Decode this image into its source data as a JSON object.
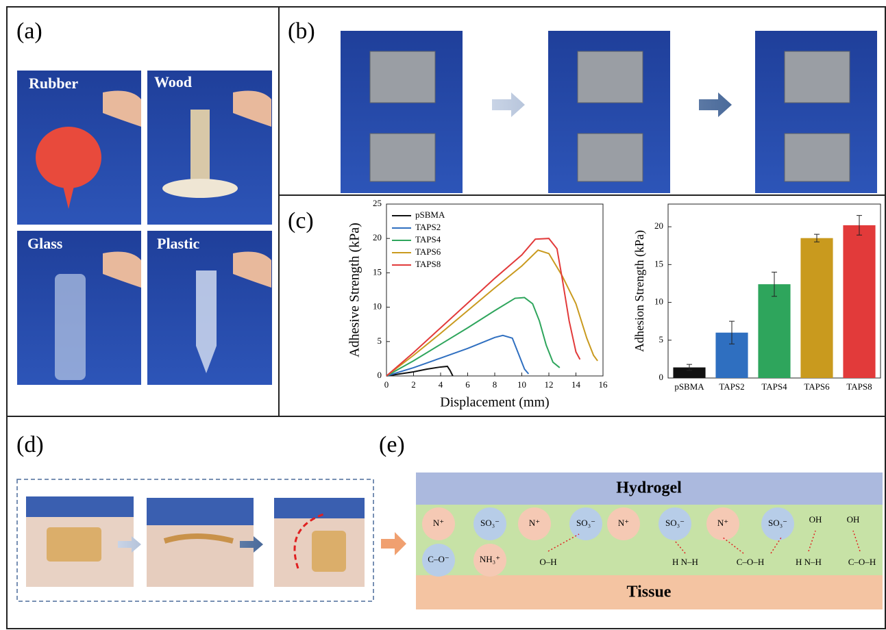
{
  "panels": {
    "a": "(a)",
    "b": "(b)",
    "c": "(c)",
    "d": "(d)",
    "e": "(e)"
  },
  "photo_labels": [
    "Rubber",
    "Wood",
    "Glass",
    "Plastic"
  ],
  "chart_data": [
    {
      "type": "line",
      "xlabel": "Displacement (mm)",
      "ylabel": "Adhesive Strength (kPa)",
      "xlim": [
        0,
        16
      ],
      "xticks": [
        0,
        2,
        4,
        6,
        8,
        10,
        12,
        14,
        16
      ],
      "ylim": [
        0,
        25
      ],
      "yticks": [
        0,
        5,
        10,
        15,
        20,
        25
      ],
      "legend": "upper left",
      "series": [
        {
          "name": "pSBMA",
          "color": "#111111",
          "x": [
            0,
            1,
            2,
            3,
            4,
            4.5,
            4.7,
            4.9
          ],
          "values": [
            0,
            0.3,
            0.6,
            1.0,
            1.3,
            1.4,
            0.8,
            0
          ]
        },
        {
          "name": "TAPS2",
          "color": "#2f6fc0",
          "x": [
            0,
            2,
            4,
            6,
            8,
            8.6,
            9.3,
            9.8,
            10.2,
            10.5
          ],
          "values": [
            0,
            1.2,
            2.6,
            4.0,
            5.6,
            5.9,
            5.5,
            3,
            1,
            0.3
          ]
        },
        {
          "name": "TAPS4",
          "color": "#2ea55c",
          "x": [
            0,
            2,
            4,
            6,
            8,
            9.5,
            10.2,
            10.8,
            11.3,
            11.8,
            12.3,
            12.8
          ],
          "values": [
            0,
            2.2,
            4.6,
            7,
            9.5,
            11.3,
            11.4,
            10.5,
            8,
            4.5,
            2,
            1.2
          ]
        },
        {
          "name": "TAPS6",
          "color": "#c99a1e",
          "x": [
            0,
            2,
            4,
            6,
            8,
            10,
            11.2,
            12,
            13,
            14,
            14.8,
            15.3,
            15.6
          ],
          "values": [
            0,
            3,
            6.2,
            9.5,
            12.8,
            16,
            18.3,
            17.8,
            14.5,
            10.5,
            5.5,
            3,
            2.2
          ]
        },
        {
          "name": "TAPS8",
          "color": "#e23a3a",
          "x": [
            0,
            2,
            4,
            6,
            8,
            10,
            11,
            12,
            12.6,
            13,
            13.5,
            14,
            14.3
          ],
          "values": [
            0,
            3.4,
            7,
            10.6,
            14.2,
            17.6,
            19.9,
            20,
            18.5,
            14,
            8,
            3.5,
            2.4
          ]
        }
      ]
    },
    {
      "type": "bar",
      "ylabel": "Adhesion Strength (kPa)",
      "categories": [
        "pSBMA",
        "TAPS2",
        "TAPS4",
        "TAPS6",
        "TAPS8"
      ],
      "values": [
        1.4,
        6.0,
        12.4,
        18.5,
        20.2
      ],
      "errors": [
        0.4,
        1.5,
        1.6,
        0.5,
        1.3
      ],
      "colors": [
        "#111111",
        "#2f6fc0",
        "#2ea55c",
        "#c99a1e",
        "#e23a3a"
      ],
      "ylim": [
        0,
        23
      ],
      "yticks": [
        0,
        5,
        10,
        15,
        20
      ]
    }
  ],
  "diagram": {
    "top": "Hydrogel",
    "bottom": "Tissue",
    "groups": [
      "N⁺",
      "SO₃⁻",
      "N⁺",
      "SO₃⁻",
      "N⁺",
      "SO₃⁻",
      "N⁺",
      "SO₃⁻",
      "OH",
      "OH",
      "C–O⁻",
      "NH₃⁺",
      "O–H",
      "H N–H",
      "C–O–H",
      "H N–H",
      "C–O–H"
    ]
  }
}
